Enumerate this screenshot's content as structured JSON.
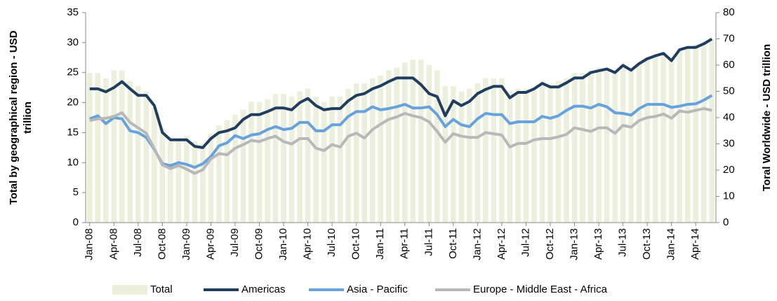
{
  "chart_data": {
    "type": "bar-line",
    "categories": [
      "Jan-08",
      null,
      null,
      "Apr-08",
      null,
      null,
      "Jul-08",
      null,
      null,
      "Oct-08",
      null,
      null,
      "Jan-09",
      null,
      null,
      "Apr-09",
      null,
      null,
      "Jul-09",
      null,
      null,
      "Oct-09",
      null,
      null,
      "Jan-10",
      null,
      null,
      "Apr-10",
      null,
      null,
      "Jul-10",
      null,
      null,
      "Oct-10",
      null,
      null,
      "Jan-11",
      null,
      null,
      "Apr-11",
      null,
      null,
      "Jul-11",
      null,
      null,
      "Oct-11",
      null,
      null,
      "Jan-12",
      null,
      null,
      "Apr-12",
      null,
      null,
      "Jul-12",
      null,
      null,
      "Oct-12",
      null,
      null,
      "Jan-13",
      null,
      null,
      "Apr-13",
      null,
      null,
      "Jul-13",
      null,
      null,
      "Oct-13",
      null,
      null,
      "Jan-14",
      null,
      null,
      "Apr-14",
      null,
      null
    ],
    "y_label": [
      "Total by geographical region - USD",
      "trillion"
    ],
    "y2_label": "Toral Worldwide - USD trillion",
    "ylim": [
      0,
      35
    ],
    "yticks": [
      0,
      5,
      10,
      15,
      20,
      25,
      30,
      35
    ],
    "y2lim": [
      0,
      80
    ],
    "y2ticks": [
      0,
      10,
      20,
      30,
      40,
      50,
      60,
      70,
      80
    ],
    "legend": "bottom",
    "series": [
      {
        "name": "Total",
        "kind": "bar",
        "axis": "y2",
        "color": "#ecefdc",
        "values": [
          57,
          57,
          55,
          58,
          58,
          54,
          52,
          50,
          44,
          36,
          31,
          32,
          33,
          31,
          30,
          34,
          37,
          39,
          41,
          43,
          46,
          46,
          47,
          49,
          49,
          48,
          50,
          51,
          48,
          46,
          48,
          48,
          51,
          53,
          53,
          55,
          56,
          58,
          59,
          61,
          62,
          62,
          60,
          58,
          52,
          52,
          50,
          51,
          53,
          55,
          55,
          55,
          50,
          51,
          51,
          51,
          54,
          53,
          54,
          55,
          57,
          57,
          58,
          59,
          59,
          58,
          60,
          58,
          61,
          63,
          64,
          65,
          63,
          66,
          67,
          68,
          69,
          70
        ]
      },
      {
        "name": "Americas",
        "kind": "line",
        "color": "#1f3d5f",
        "values": [
          22.3,
          22.3,
          21.8,
          22.5,
          23.5,
          22.3,
          21.2,
          21.2,
          19.5,
          15,
          13.8,
          13.8,
          13.8,
          12.7,
          12.5,
          14,
          15,
          15.3,
          15.8,
          17.2,
          18,
          18,
          18.5,
          19.1,
          19.1,
          18.8,
          20,
          20.7,
          19.5,
          18.8,
          19,
          19,
          20.3,
          21.2,
          21.5,
          22.3,
          22.8,
          23.5,
          24.1,
          24.1,
          24.1,
          23,
          21.5,
          21,
          17.8,
          20.3,
          19.5,
          20.2,
          21.5,
          22.2,
          22.7,
          22.7,
          20.8,
          21.7,
          21.7,
          22.3,
          23.2,
          22.6,
          22.6,
          23.3,
          24.1,
          24.1,
          25,
          25.3,
          25.6,
          25,
          26.2,
          25.4,
          26.5,
          27.3,
          27.8,
          28.2,
          27,
          28.8,
          29.2,
          29.2,
          29.8,
          30.6
        ]
      },
      {
        "name": "Asia - Pacific",
        "kind": "line",
        "color": "#66a3dd",
        "values": [
          17.3,
          17.8,
          16.5,
          17.5,
          17.3,
          15.3,
          15,
          14.2,
          12.2,
          9.8,
          9.5,
          10,
          9.7,
          9.2,
          9.8,
          11,
          12.8,
          13.3,
          14.5,
          14,
          14.6,
          14.8,
          15.5,
          16,
          15.5,
          15.7,
          16.7,
          16.7,
          15.3,
          15.3,
          16.3,
          16.3,
          17.7,
          18.5,
          18.5,
          19.3,
          18.8,
          19,
          19.3,
          19.7,
          19.1,
          19.1,
          19.3,
          18,
          16,
          17.2,
          16.3,
          16,
          17.3,
          18.2,
          18,
          18,
          16.5,
          16.8,
          16.8,
          16.8,
          17.7,
          17.4,
          17.8,
          18.7,
          19.4,
          19.4,
          19.1,
          19.7,
          19.3,
          18.3,
          18.2,
          17.9,
          19,
          19.7,
          19.7,
          19.7,
          19.2,
          19.4,
          19.7,
          19.8,
          20.4,
          21.2
        ]
      },
      {
        "name": "Europe - Middle East - Africa",
        "kind": "line",
        "color": "#b8b8b8",
        "values": [
          17,
          17.3,
          17.4,
          17.7,
          18.3,
          16.7,
          15.8,
          14.9,
          12.3,
          9.6,
          9,
          9.5,
          8.9,
          8.2,
          8.8,
          10.6,
          11.5,
          11.3,
          12.4,
          13,
          13.7,
          13.5,
          14,
          14.4,
          13.5,
          13.1,
          14,
          14,
          12.4,
          12,
          13,
          12.6,
          14.4,
          14.9,
          14.1,
          15.5,
          16.4,
          17.2,
          17.6,
          18.2,
          17.8,
          17.5,
          16.8,
          15.2,
          13.4,
          14.8,
          14.4,
          14.2,
          14.2,
          15,
          14.8,
          14.6,
          12.6,
          13.2,
          13.2,
          13.8,
          14,
          14,
          14.3,
          14.7,
          15.8,
          15.5,
          15.2,
          15.8,
          15.8,
          14.9,
          16.2,
          15.9,
          17,
          17.5,
          17.7,
          18.1,
          17.4,
          18.6,
          18.4,
          18.7,
          19,
          18.7
        ]
      }
    ]
  }
}
